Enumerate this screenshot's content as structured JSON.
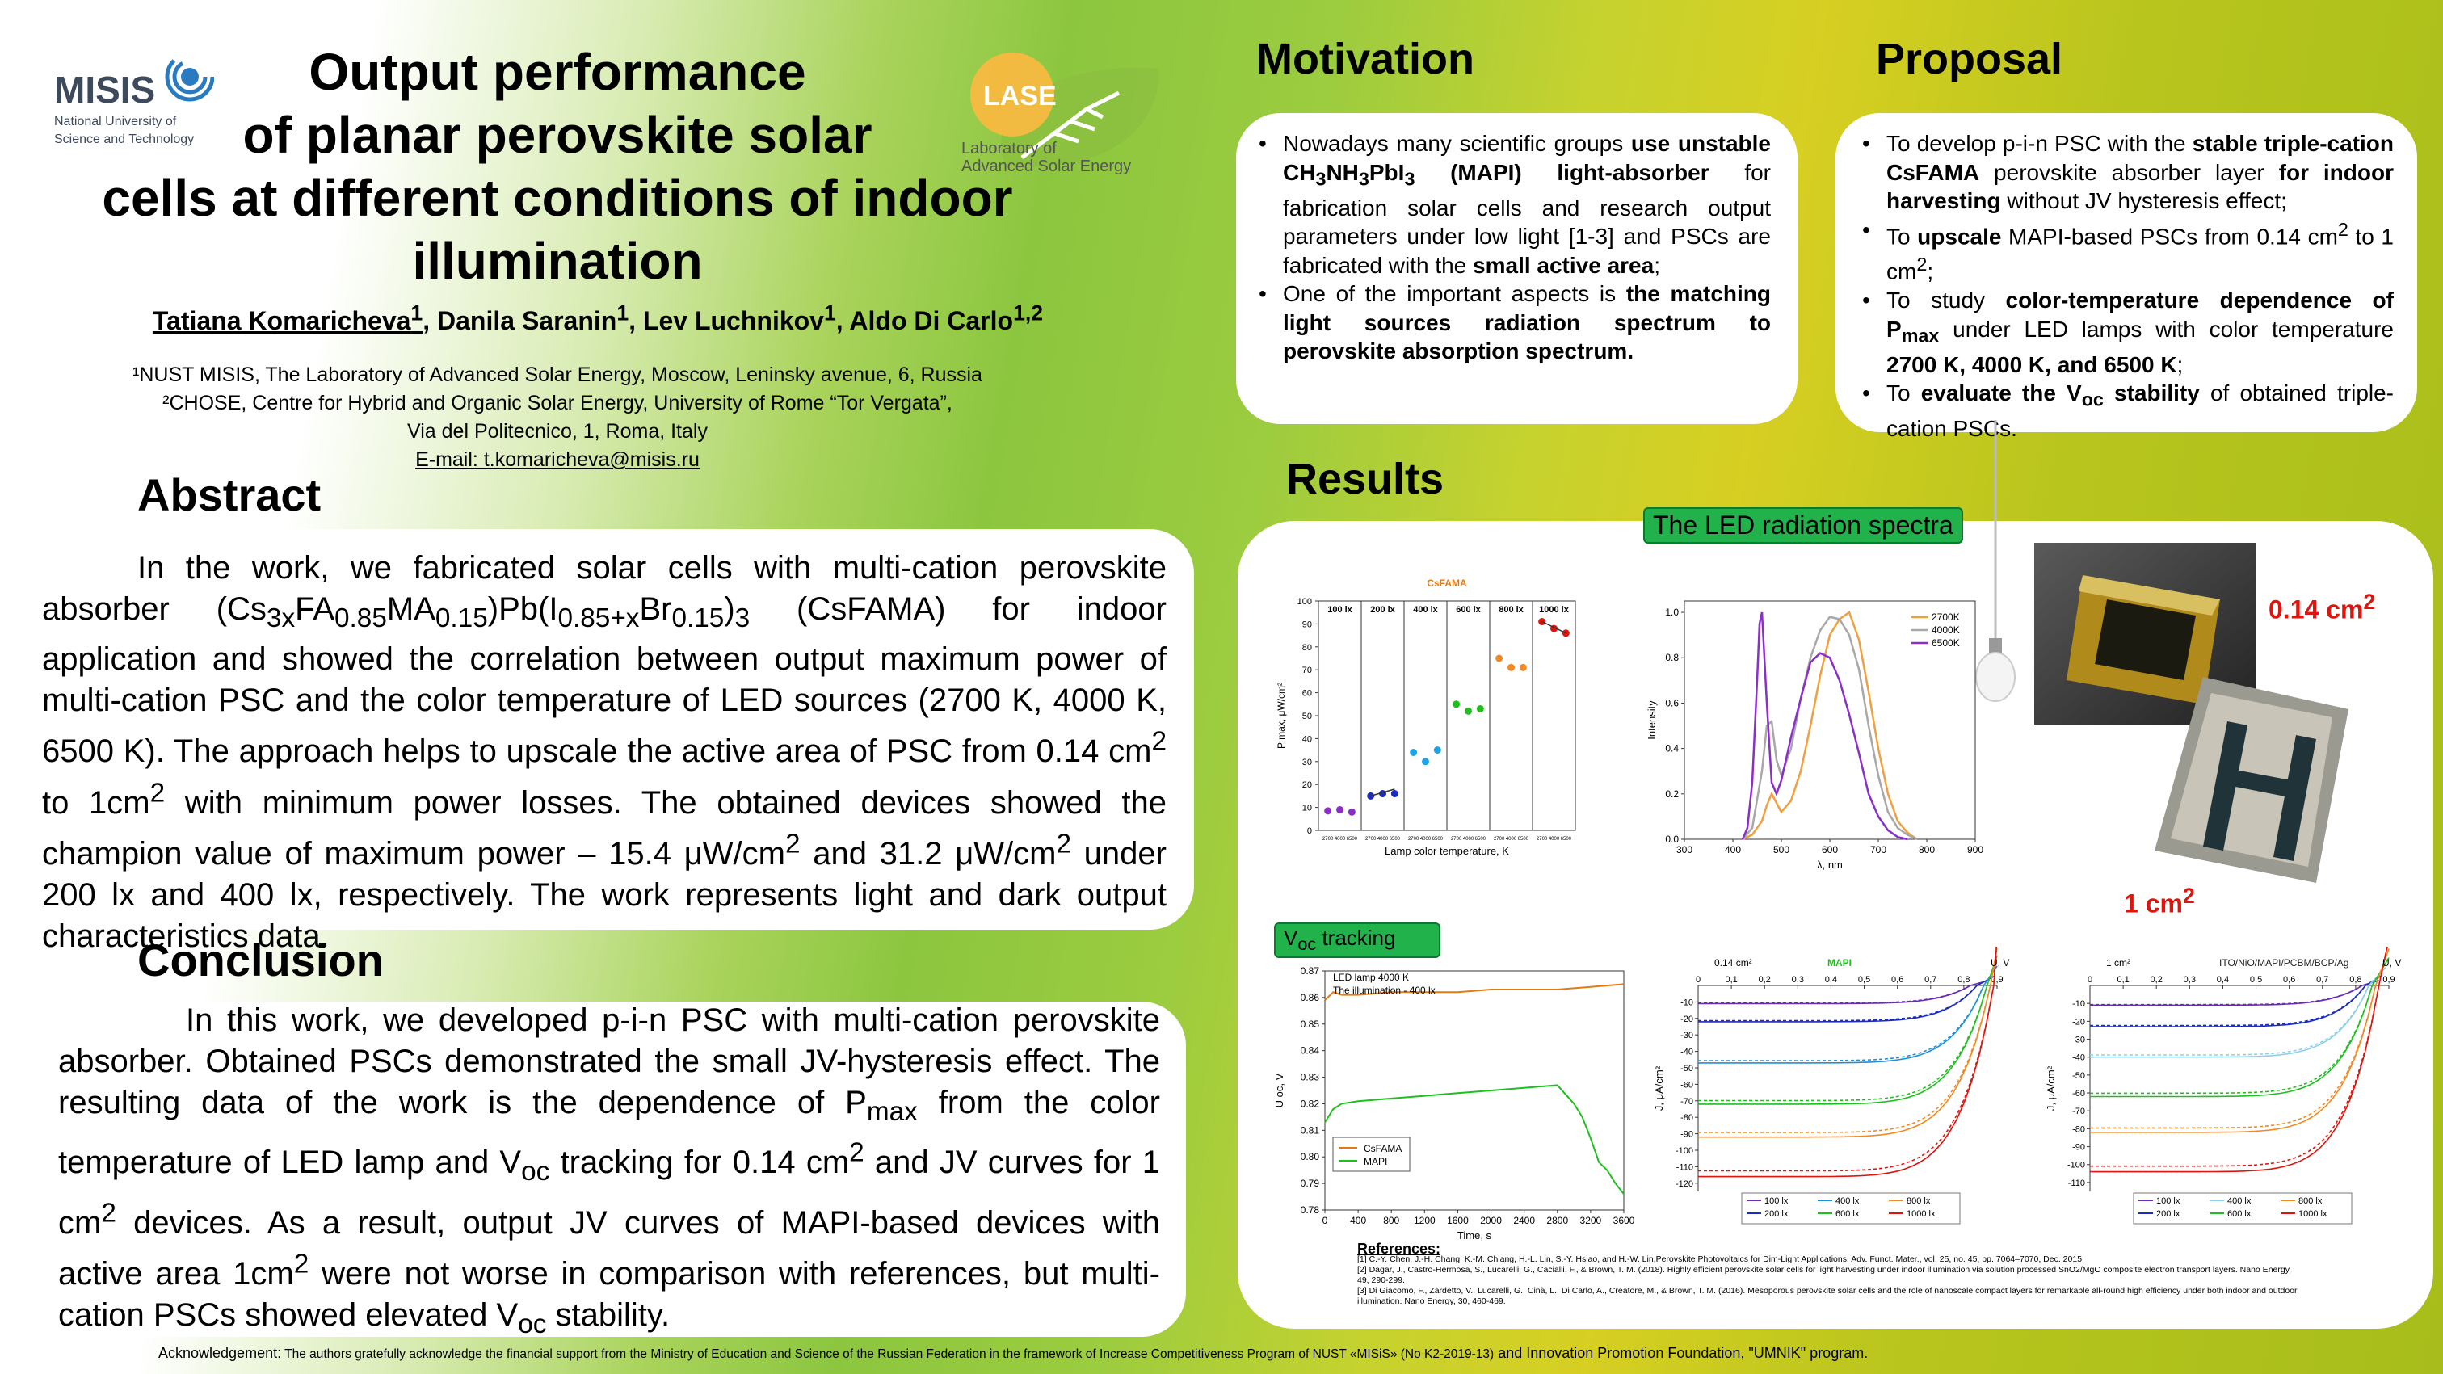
{
  "header": {
    "logo_misis": {
      "name": "MISIS",
      "line1": "National University of",
      "line2": "Science and Technology"
    },
    "logo_lase": {
      "name": "LASE",
      "line1": "Laboratory of",
      "line2": "Advanced Solar Energy"
    },
    "title_lines": [
      "Output performance",
      "of planar perovskite solar",
      "cells at different conditions of indoor",
      "illumination"
    ],
    "authors": [
      {
        "name": "Tatiana Komaricheva",
        "sup": "1"
      },
      {
        "name": "Danila Saranin",
        "sup": "1"
      },
      {
        "name": "Lev Luchnikov",
        "sup": "1"
      },
      {
        "name": "Aldo Di Carlo",
        "sup": "1,2"
      }
    ],
    "affiliations": [
      "¹NUST MISIS, The Laboratory of Advanced Solar Energy, Moscow, Leninsky avenue, 6, Russia",
      "²CHOSE, Centre for Hybrid and Organic Solar Energy, University of Rome “Tor Vergata”,",
      "Via del Politecnico, 1, Roma, Italy"
    ],
    "email": "E-mail: t.komaricheva@misis.ru"
  },
  "abstract": {
    "heading": "Abstract"
  },
  "conclusion": {
    "heading": "Conclusion"
  },
  "motivation": {
    "heading": "Motivation"
  },
  "proposal": {
    "heading": "Proposal"
  },
  "results": {
    "heading": "Results",
    "led_tag": "The LED radiation spectra",
    "voc_tag": "V",
    "voc_tag_sub": "oc",
    "voc_tag_rest": " tracking",
    "area_small": "0.14 cm",
    "area_large": "1 cm",
    "area_sup": "2"
  },
  "references": {
    "heading": "References:",
    "items": [
      "[1] C.-Y. Chen, J.-H. Chang, K.-M. Chiang, H.-L. Lin, S.-Y. Hsiao, and H.-W. Lin,Perovskite Photovoltaics for Dim-Light Applications, Adv. Funct. Mater., vol. 25, no. 45, pp. 7064–7070, Dec. 2015.",
      "[2] Dagar, J., Castro-Hermosa, S., Lucarelli, G., Cacialli, F., & Brown, T. M. (2018). Highly efficient perovskite solar cells for light harvesting under indoor illumination via solution processed SnO2/MgO composite electron transport layers. Nano Energy, 49, 290-299.",
      "[3] Di Giacomo, F., Zardetto, V., Lucarelli, G., Cinà, L., Di Carlo, A., Creatore, M., & Brown, T. M. (2016). Mesoporous perovskite solar cells and the role of nanoscale compact layers for remarkable all-round high efficiency under both indoor and outdoor illumination. Nano Energy, 30, 460-469."
    ]
  },
  "acknowledgement": {
    "label": "Acknowledgement:",
    "text": " The authors gratefully acknowledge the financial support from the Ministry of Education and Science of the Russian Federation in the framework of Increase Competitiveness Program of NUST «MISiS» (No K2-2019-13)",
    "tail": " and Innovation Promotion Foundation, \"UMNIK\" program."
  },
  "colors": {
    "green_tag": "#22b24c",
    "title_red": "#e0140c",
    "csfama": "#e07b18",
    "mapi": "#1fbf1f"
  },
  "chart_data": [
    {
      "type": "scatter",
      "title": "CsFAMA",
      "xlabel": "Lamp color temperature, K",
      "ylabel": "P max, μW/cm²",
      "ylim": [
        0,
        100
      ],
      "yticks": [
        0,
        10,
        20,
        30,
        40,
        50,
        60,
        70,
        80,
        90,
        100
      ],
      "groups": [
        "100 lx",
        "200 lx",
        "400 lx",
        "600 lx",
        "800 lx",
        "1000 lx"
      ],
      "x_per_group": [
        "2700",
        "4000",
        "6500"
      ],
      "series": [
        {
          "values": [
            [
              8.5,
              9,
              8
            ],
            [
              15,
              16,
              16
            ],
            [
              34,
              30,
              35
            ],
            [
              55,
              52,
              53
            ],
            [
              75,
              71,
              71
            ],
            [
              91,
              88,
              86
            ]
          ]
        }
      ],
      "group_colors": [
        "#8b2fc9",
        "#1a2dbf",
        "#1fa3e8",
        "#1fbf1f",
        "#f08a24",
        "#e0140c"
      ]
    },
    {
      "type": "line",
      "xlabel": "λ, nm",
      "ylabel": "Intensity",
      "xlim": [
        300,
        900
      ],
      "ylim": [
        0,
        1.05
      ],
      "xticks": [
        300,
        400,
        500,
        600,
        700,
        800,
        900
      ],
      "yticks": [
        0.0,
        0.2,
        0.4,
        0.6,
        0.8,
        1.0
      ],
      "legend": "top-right",
      "series": [
        {
          "name": "2700K",
          "color": "#f0a040",
          "x": [
            420,
            440,
            460,
            470,
            480,
            490,
            500,
            520,
            540,
            560,
            580,
            600,
            620,
            640,
            660,
            680,
            700,
            720,
            740,
            760,
            780
          ],
          "y": [
            0,
            0.02,
            0.08,
            0.15,
            0.2,
            0.16,
            0.12,
            0.17,
            0.3,
            0.5,
            0.72,
            0.9,
            0.97,
            1.0,
            0.88,
            0.65,
            0.4,
            0.2,
            0.08,
            0.03,
            0.0
          ]
        },
        {
          "name": "4000K",
          "color": "#a8a8a8",
          "x": [
            420,
            440,
            460,
            470,
            480,
            490,
            500,
            520,
            540,
            560,
            580,
            600,
            620,
            640,
            660,
            680,
            700,
            720,
            740,
            760,
            780
          ],
          "y": [
            0,
            0.05,
            0.3,
            0.5,
            0.52,
            0.35,
            0.28,
            0.4,
            0.62,
            0.8,
            0.92,
            0.98,
            0.97,
            0.9,
            0.75,
            0.5,
            0.28,
            0.12,
            0.05,
            0.02,
            0.0
          ]
        },
        {
          "name": "6500K",
          "color": "#8b2fc9",
          "x": [
            420,
            430,
            440,
            450,
            455,
            460,
            470,
            480,
            490,
            500,
            520,
            540,
            560,
            580,
            600,
            620,
            640,
            660,
            680,
            700,
            720,
            740,
            760
          ],
          "y": [
            0,
            0.05,
            0.25,
            0.7,
            0.95,
            1.0,
            0.6,
            0.25,
            0.2,
            0.26,
            0.45,
            0.62,
            0.78,
            0.82,
            0.8,
            0.7,
            0.55,
            0.38,
            0.2,
            0.1,
            0.04,
            0.01,
            0.0
          ]
        }
      ]
    },
    {
      "type": "line",
      "title": "LED lamp 4000 K",
      "subtitle": "The illumination - 400 lx",
      "xlabel": "Time, s",
      "ylabel": "U oc, V",
      "xlim": [
        0,
        3600
      ],
      "ylim": [
        0.78,
        0.87
      ],
      "xticks": [
        0,
        400,
        800,
        1200,
        1600,
        2000,
        2400,
        2800,
        3200,
        3600
      ],
      "yticks": [
        0.78,
        0.79,
        0.8,
        0.81,
        0.82,
        0.83,
        0.84,
        0.85,
        0.86,
        0.87
      ],
      "legend": "bottom-left",
      "series": [
        {
          "name": "CsFAMA",
          "color": "#e07b18",
          "x": [
            0,
            100,
            200,
            400,
            800,
            1200,
            1600,
            2000,
            2400,
            2800,
            3200,
            3600
          ],
          "y": [
            0.859,
            0.862,
            0.861,
            0.861,
            0.862,
            0.862,
            0.862,
            0.863,
            0.863,
            0.863,
            0.864,
            0.865
          ]
        },
        {
          "name": "MAPI",
          "color": "#1fbf1f",
          "x": [
            0,
            100,
            200,
            400,
            800,
            1200,
            1600,
            2000,
            2400,
            2800,
            3000,
            3100,
            3200,
            3300,
            3400,
            3500,
            3600
          ],
          "y": [
            0.813,
            0.818,
            0.82,
            0.821,
            0.822,
            0.823,
            0.824,
            0.825,
            0.826,
            0.827,
            0.82,
            0.815,
            0.807,
            0.798,
            0.795,
            0.79,
            0.786
          ]
        }
      ]
    },
    {
      "type": "line",
      "title": "0.14 cm²",
      "subtitle": "MAPI",
      "xlabel": "U, V",
      "ylabel": "J, μA/cm²",
      "xlim": [
        0,
        0.9
      ],
      "ylim": [
        -125,
        0
      ],
      "xticks": [
        0,
        0.1,
        0.2,
        0.3,
        0.4,
        0.5,
        0.6,
        0.7,
        0.8,
        0.9
      ],
      "yticks": [
        -10,
        -20,
        -30,
        -40,
        -50,
        -60,
        -70,
        -80,
        -90,
        -100,
        -110,
        -120
      ],
      "legend": "bottom",
      "series": [
        {
          "name": "100 lx",
          "color": "#6a2bb5",
          "jsc": -11,
          "voc": 0.82
        },
        {
          "name": "200 lx",
          "color": "#1a2dbf",
          "jsc": -22,
          "voc": 0.84
        },
        {
          "name": "400 lx",
          "color": "#1f8fd8",
          "jsc": -47,
          "voc": 0.86
        },
        {
          "name": "600 lx",
          "color": "#1fbf1f",
          "jsc": -72,
          "voc": 0.87
        },
        {
          "name": "800 lx",
          "color": "#f08a24",
          "jsc": -92,
          "voc": 0.88
        },
        {
          "name": "1000 lx",
          "color": "#e0140c",
          "jsc": -116,
          "voc": 0.89
        }
      ]
    },
    {
      "type": "line",
      "title": "1 cm²",
      "subtitle": "ITO/NiO/MAPI/PCBM/BCP/Ag",
      "xlabel": "U, V",
      "ylabel": "J, μA/cm²",
      "xlim": [
        0,
        0.9
      ],
      "ylim": [
        -115,
        0
      ],
      "xticks": [
        0,
        0.1,
        0.2,
        0.3,
        0.4,
        0.5,
        0.6,
        0.7,
        0.8,
        0.9
      ],
      "yticks": [
        -10,
        -20,
        -30,
        -40,
        -50,
        -60,
        -70,
        -80,
        -90,
        -100,
        -110
      ],
      "legend": "bottom",
      "series": [
        {
          "name": "100 lx",
          "color": "#6a2bb5",
          "jsc": -11,
          "voc": 0.82
        },
        {
          "name": "200 lx",
          "color": "#1a2dbf",
          "jsc": -23,
          "voc": 0.83
        },
        {
          "name": "400 lx",
          "color": "#8fd0e8",
          "jsc": -40,
          "voc": 0.84
        },
        {
          "name": "600 lx",
          "color": "#1fbf1f",
          "jsc": -62,
          "voc": 0.85
        },
        {
          "name": "800 lx",
          "color": "#f08a24",
          "jsc": -82,
          "voc": 0.86
        },
        {
          "name": "1000 lx",
          "color": "#e0140c",
          "jsc": -104,
          "voc": 0.87
        }
      ]
    }
  ]
}
